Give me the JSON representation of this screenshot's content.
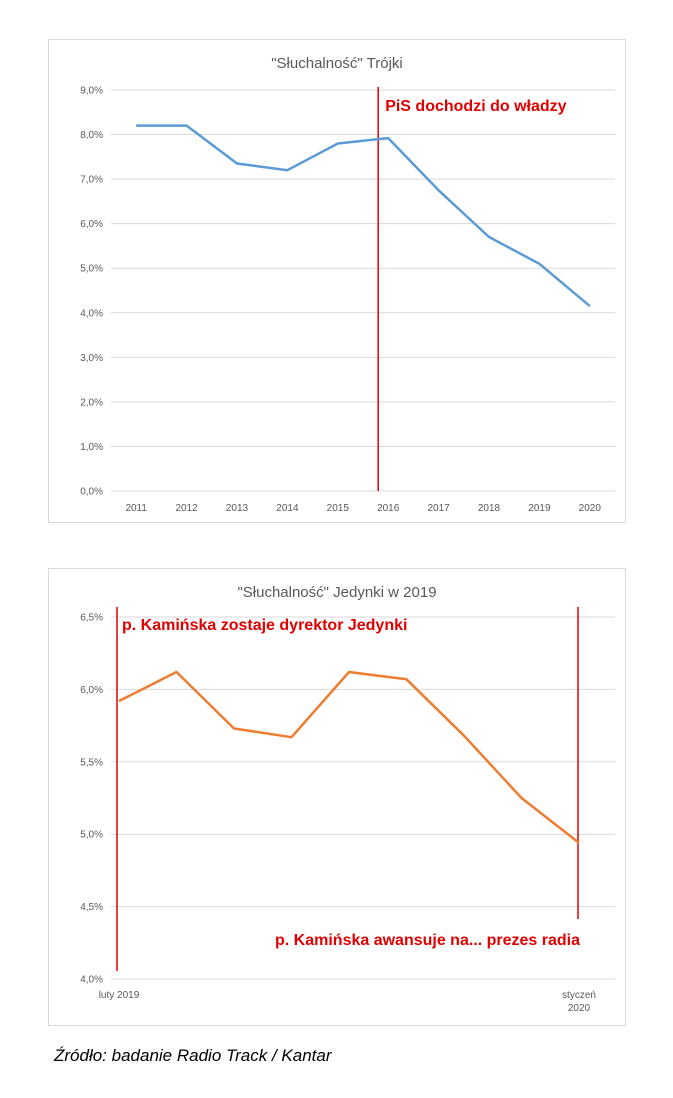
{
  "chart_data": [
    {
      "type": "line",
      "title": "\"Słuchalność\" Trójki",
      "categories": [
        "2011",
        "2012",
        "2013",
        "2014",
        "2015",
        "2016",
        "2017",
        "2018",
        "2019",
        "2020"
      ],
      "series": [
        {
          "values": [
            8.2,
            8.2,
            7.35,
            7.2,
            7.8,
            7.92,
            6.75,
            5.7,
            5.1,
            4.15
          ],
          "color": "#5b9bd5"
        }
      ],
      "ylim": [
        0,
        9
      ],
      "y_ticks": [
        "0,0%",
        "1,0%",
        "2,0%",
        "3,0%",
        "4,0%",
        "5,0%",
        "6,0%",
        "7,0%",
        "8,0%",
        "9,0%"
      ],
      "grid": true,
      "annotations": [
        {
          "text": "PiS dochodzi do władzy",
          "x_position": 5.0
        }
      ]
    },
    {
      "type": "line",
      "title": "\"Słuchalność\" Jedynki w 2019",
      "series": [
        {
          "values": [
            5.92,
            6.12,
            5.73,
            5.67,
            6.12,
            6.07,
            5.68,
            5.25,
            4.94
          ],
          "color": "#ed7d31"
        }
      ],
      "x_labels": [
        {
          "text": "luty 2019",
          "index": 0
        },
        {
          "text": "styczeń 2020",
          "index": 8
        }
      ],
      "ylim": [
        4.0,
        6.5
      ],
      "y_ticks": [
        "4,0%",
        "4,5%",
        "5,0%",
        "5,5%",
        "6,0%",
        "6,5%"
      ],
      "grid": true,
      "annotations": [
        {
          "text": "p. Kamińska zostaje dyrektor Jedynki",
          "x_position": 0
        },
        {
          "text": "p. Kamińska awansuje na... prezes radia",
          "x_position": 8
        }
      ]
    }
  ],
  "source": "Źródło: badanie Radio Track / Kantar"
}
